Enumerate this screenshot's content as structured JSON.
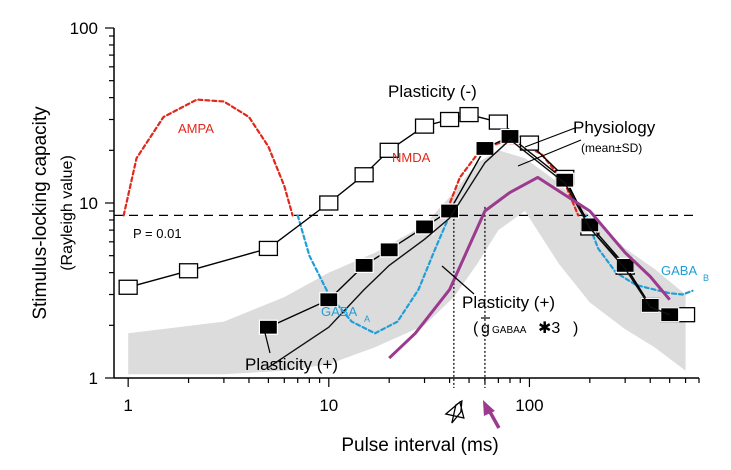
{
  "chart_data": {
    "type": "line",
    "xlabel": "Pulse interval (ms)",
    "ylabel": "Stimulus-locking capacity",
    "ylabel_sub": "(Rayleigh value)",
    "x_scale": "log",
    "y_scale": "log",
    "xlim": [
      0.85,
      700
    ],
    "ylim": [
      1,
      100
    ],
    "x_ticks": [
      {
        "value": 1,
        "label": "1"
      },
      {
        "value": 10,
        "label": "10"
      },
      {
        "value": 100,
        "label": "100"
      }
    ],
    "y_ticks": [
      {
        "value": 1,
        "label": "1"
      },
      {
        "value": 10,
        "label": "10"
      },
      {
        "value": 100,
        "label": "100"
      }
    ],
    "threshold": {
      "value": 8.5,
      "label": "P = 0.01",
      "style": "dashed"
    },
    "physiology_band": {
      "name": "Physiology",
      "sublabel": "(mean±SD)",
      "x": [
        1,
        3,
        6,
        10,
        17,
        30,
        42,
        55,
        70,
        95,
        140,
        200,
        300,
        420,
        600
      ],
      "upper": [
        1.8,
        2.1,
        2.9,
        4.0,
        5.2,
        7.5,
        11.5,
        17,
        20,
        18,
        13,
        8.5,
        5.5,
        4.2,
        3.0
      ],
      "lower": [
        1.05,
        1.05,
        1.1,
        1.2,
        1.5,
        2.0,
        2.9,
        4.5,
        7,
        9,
        4.5,
        2.7,
        1.9,
        1.5,
        1.1
      ]
    },
    "series": [
      {
        "name": "Plasticity (-)",
        "marker": "open-square",
        "x": [
          1,
          2,
          5,
          10,
          15,
          20,
          30,
          40,
          50,
          70,
          100,
          150,
          200,
          300,
          400,
          500,
          600
        ],
        "y": [
          3.3,
          4.1,
          5.5,
          10,
          14.5,
          20,
          27.5,
          30,
          32,
          29,
          22,
          14,
          7.2,
          4.3,
          2.6,
          2.3,
          2.3
        ]
      },
      {
        "name": "Physiology",
        "marker": "filled-square",
        "x": [
          5,
          10,
          15,
          20,
          30,
          40,
          60,
          80,
          150,
          200,
          300,
          400,
          500
        ],
        "y": [
          1.95,
          2.8,
          4.4,
          5.4,
          7.3,
          9.0,
          20.5,
          24,
          13.5,
          7.5,
          4.4,
          2.6,
          2.3
        ]
      },
      {
        "name": "Plasticity (+)",
        "marker": "none",
        "color": "#111111",
        "x": [
          5,
          10,
          15,
          20,
          30,
          40,
          60,
          80,
          150,
          200,
          300,
          400,
          500
        ],
        "y": [
          1.15,
          1.95,
          3.2,
          4.4,
          6.2,
          8.2,
          17,
          23,
          13,
          7.2,
          4.2,
          2.55,
          2.3
        ]
      },
      {
        "name": "Plasticity (+) (g GABAA *3)",
        "marker": "none",
        "color": "#9b3a8e",
        "x": [
          20,
          27,
          40,
          60,
          80,
          110,
          200,
          300,
          400,
          500
        ],
        "y": [
          1.3,
          1.8,
          3.2,
          9,
          11.5,
          14,
          9,
          5.2,
          3.8,
          2.8
        ]
      }
    ],
    "conductance_curves": [
      {
        "name": "AMPA",
        "color": "#e0281b",
        "x": [
          0.95,
          1.1,
          1.5,
          2.2,
          3.0,
          4.0,
          5.0,
          6.0,
          6.6
        ],
        "y": [
          8.5,
          18,
          31,
          39,
          38,
          31,
          21,
          12.5,
          8.5
        ]
      },
      {
        "name": "NMDA",
        "color": "#e0281b",
        "x": [
          38,
          45,
          55,
          70,
          90,
          115,
          150,
          175
        ],
        "y": [
          8.5,
          14,
          19,
          22,
          22,
          19,
          13,
          8.5
        ]
      },
      {
        "name": "GABA",
        "name_sub": "A",
        "color": "#1f9fd8",
        "x": [
          7,
          8,
          10,
          13,
          17,
          22,
          28,
          34,
          40
        ],
        "y": [
          8.5,
          5,
          3,
          2.1,
          1.8,
          2.1,
          3.2,
          5.5,
          8.5
        ]
      },
      {
        "name": "GABA",
        "name_sub": "B",
        "color": "#1f9fd8",
        "x": [
          190,
          220,
          270,
          340,
          420,
          500,
          580,
          650
        ],
        "y": [
          8.5,
          5.5,
          4.0,
          3.4,
          3.2,
          3.05,
          3.0,
          3.15
        ]
      }
    ],
    "vertical_markers": [
      {
        "x": 42,
        "arrow": "open",
        "color": "#000000"
      },
      {
        "x": 60,
        "arrow": "filled",
        "color": "#9b3a8e"
      }
    ],
    "annotations": {
      "plasticity_minus": "Plasticity (-)",
      "physiology": "Physiology",
      "physiology_sub": "(mean±SD)",
      "plasticity_plus": "Plasticity (+)",
      "plasticity_plus_purple": "Plasticity (+)",
      "g_symbol": "g",
      "gaba_small": "GABAA",
      "times_three": "✱3",
      "paren_open": "(",
      "paren_close": ")",
      "ampa": "AMPA",
      "nmda": "NMDA",
      "gaba_a_main": "GABA",
      "gaba_a_sub": "A",
      "gaba_b_main": "GABA",
      "gaba_b_sub": "B",
      "p_value": "P = 0.01"
    }
  }
}
